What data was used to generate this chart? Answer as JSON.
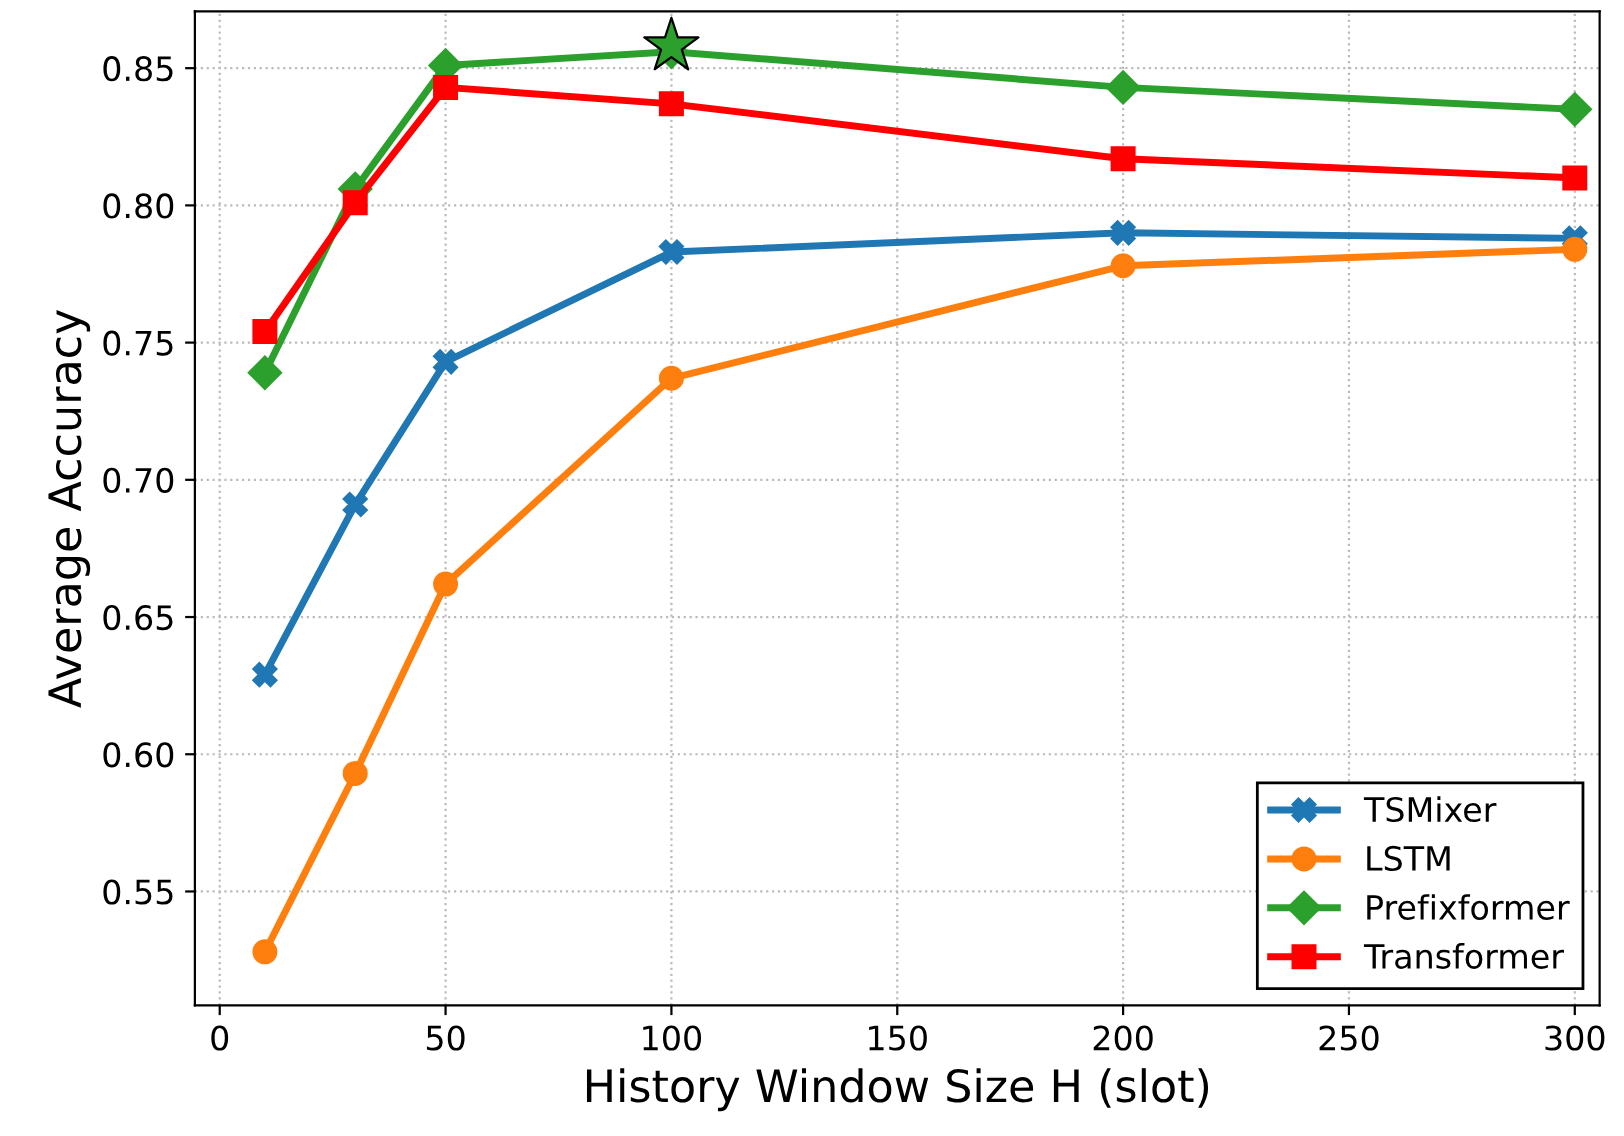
{
  "chart_data": {
    "type": "line",
    "xlabel": "History Window Size H (slot)",
    "ylabel": "Average Accuracy",
    "x": [
      10,
      30,
      50,
      100,
      200,
      300
    ],
    "xlim": [
      -5.5,
      305.5
    ],
    "xticks": [
      0,
      50,
      100,
      150,
      200,
      250,
      300
    ],
    "ylim": [
      0.5085,
      0.8707
    ],
    "yticks": [
      {
        "value": 0.55,
        "label": "0.55"
      },
      {
        "value": 0.6,
        "label": "0.60"
      },
      {
        "value": 0.65,
        "label": "0.65"
      },
      {
        "value": 0.7,
        "label": "0.70"
      },
      {
        "value": 0.75,
        "label": "0.75"
      },
      {
        "value": 0.8,
        "label": "0.80"
      },
      {
        "value": 0.85,
        "label": "0.85"
      }
    ],
    "grid": true,
    "legend": "bottom right",
    "line_style": "solid",
    "series": [
      {
        "name": "TSMixer",
        "color": "#1f77b4",
        "marker": "cross",
        "values": [
          0.629,
          0.691,
          0.743,
          0.783,
          0.79,
          0.788
        ]
      },
      {
        "name": "LSTM",
        "color": "#ff7f0e",
        "marker": "circle",
        "values": [
          0.528,
          0.593,
          0.662,
          0.737,
          0.778,
          0.784
        ]
      },
      {
        "name": "Prefixformer",
        "color": "#2ca02c",
        "marker": "diamond",
        "values": [
          0.739,
          0.806,
          0.851,
          0.856,
          0.843,
          0.835
        ]
      },
      {
        "name": "Transformer",
        "color": "#ff0000",
        "marker": "square",
        "values": [
          0.754,
          0.801,
          0.843,
          0.837,
          0.817,
          0.81
        ]
      },
      {
        "type": "scatter",
        "color": "#2ca02c",
        "marker": "star",
        "x": [
          100
        ],
        "values": [
          0.858
        ]
      }
    ]
  }
}
